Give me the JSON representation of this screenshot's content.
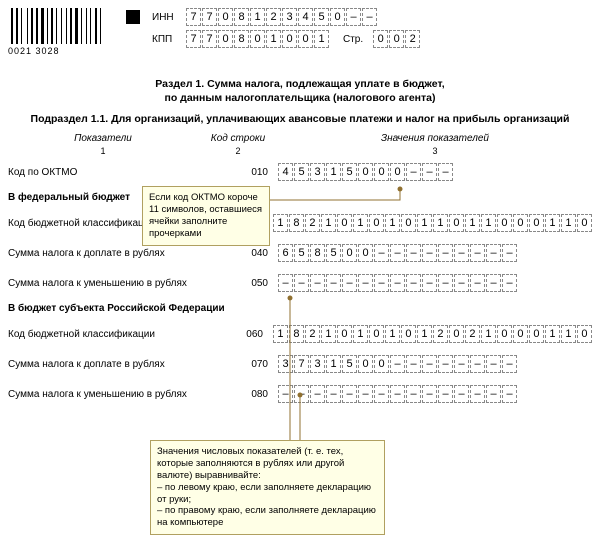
{
  "barcode_number": "0021 3028",
  "header": {
    "inn_label": "ИНН",
    "inn": [
      "7",
      "7",
      "0",
      "8",
      "1",
      "2",
      "3",
      "4",
      "5",
      "0",
      "–",
      "–"
    ],
    "kpp_label": "КПП",
    "kpp": [
      "7",
      "7",
      "0",
      "8",
      "0",
      "1",
      "0",
      "0",
      "1"
    ],
    "page_label": "Стр.",
    "page": [
      "0",
      "0",
      "2"
    ]
  },
  "titles": {
    "line1": "Раздел 1. Сумма налога, подлежащая уплате в бюджет,",
    "line2": "по данным налогоплательщика (налогового агента)",
    "sub": "Подраздел 1.1. Для организаций, уплачивающих авансовые платежи и налог на прибыль организаций"
  },
  "columns": {
    "a": "Показатели",
    "b": "Код строки",
    "c": "Значения показателей",
    "n1": "1",
    "n2": "2",
    "n3": "3"
  },
  "rows": {
    "oktmo": {
      "label": "Код по ОКТМО",
      "code": "010",
      "cells": [
        "4",
        "5",
        "3",
        "1",
        "5",
        "0",
        "0",
        "0",
        "–",
        "–",
        "–"
      ]
    },
    "kbk_fed": {
      "label": "Код бюджетной классификации",
      "code": "030",
      "cells": [
        "1",
        "8",
        "2",
        "1",
        "0",
        "1",
        "0",
        "1",
        "0",
        "1",
        "1",
        "0",
        "1",
        "1",
        "0",
        "0",
        "0",
        "1",
        "1",
        "0"
      ]
    },
    "sum_dop_fed": {
      "label": "Сумма налога к доплате в рублях",
      "code": "040",
      "cells": [
        "6",
        "5",
        "8",
        "5",
        "0",
        "0",
        "–",
        "–",
        "–",
        "–",
        "–",
        "–",
        "–",
        "–",
        "–"
      ]
    },
    "sum_um_fed": {
      "label": "Сумма налога к уменьшению в рублях",
      "code": "050",
      "cells": [
        "–",
        "–",
        "–",
        "–",
        "–",
        "–",
        "–",
        "–",
        "–",
        "–",
        "–",
        "–",
        "–",
        "–",
        "–"
      ]
    },
    "kbk_sub": {
      "label": "Код бюджетной классификации",
      "code": "060",
      "cells": [
        "1",
        "8",
        "2",
        "1",
        "0",
        "1",
        "0",
        "1",
        "0",
        "1",
        "2",
        "0",
        "2",
        "1",
        "0",
        "0",
        "0",
        "1",
        "1",
        "0"
      ]
    },
    "sum_dop_sub": {
      "label": "Сумма налога к доплате в рублях",
      "code": "070",
      "cells": [
        "3",
        "7",
        "3",
        "1",
        "5",
        "0",
        "0",
        "–",
        "–",
        "–",
        "–",
        "–",
        "–",
        "–",
        "–"
      ]
    },
    "sum_um_sub": {
      "label": "Сумма налога к уменьшению в рублях",
      "code": "080",
      "cells": [
        "–",
        "–",
        "–",
        "–",
        "–",
        "–",
        "–",
        "–",
        "–",
        "–",
        "–",
        "–",
        "–",
        "–",
        "–"
      ]
    }
  },
  "sections": {
    "fed": "В федеральный бюджет",
    "sub": "В бюджет субъекта Российской Федерации"
  },
  "callouts": {
    "c1": "Если код ОКТМО короче 11 символов, оставшиеся ячейки заполните прочерками",
    "c2": "Значения числовых показателей (т. е. тех, которые заполняются в рублях или другой валюте) выравнивайте:\n– по левому краю, если заполняете декларацию от руки;\n– по правому краю, если заполняете декларацию на компьютере"
  },
  "barcode_widths": [
    2,
    1,
    2,
    1,
    1,
    3,
    1,
    1,
    2,
    1,
    2,
    1,
    3,
    1,
    1,
    1,
    2,
    1,
    1,
    2,
    1,
    2,
    1,
    1,
    2,
    1,
    3,
    1,
    1,
    2,
    1,
    1,
    1,
    2,
    2,
    1,
    1,
    2
  ]
}
